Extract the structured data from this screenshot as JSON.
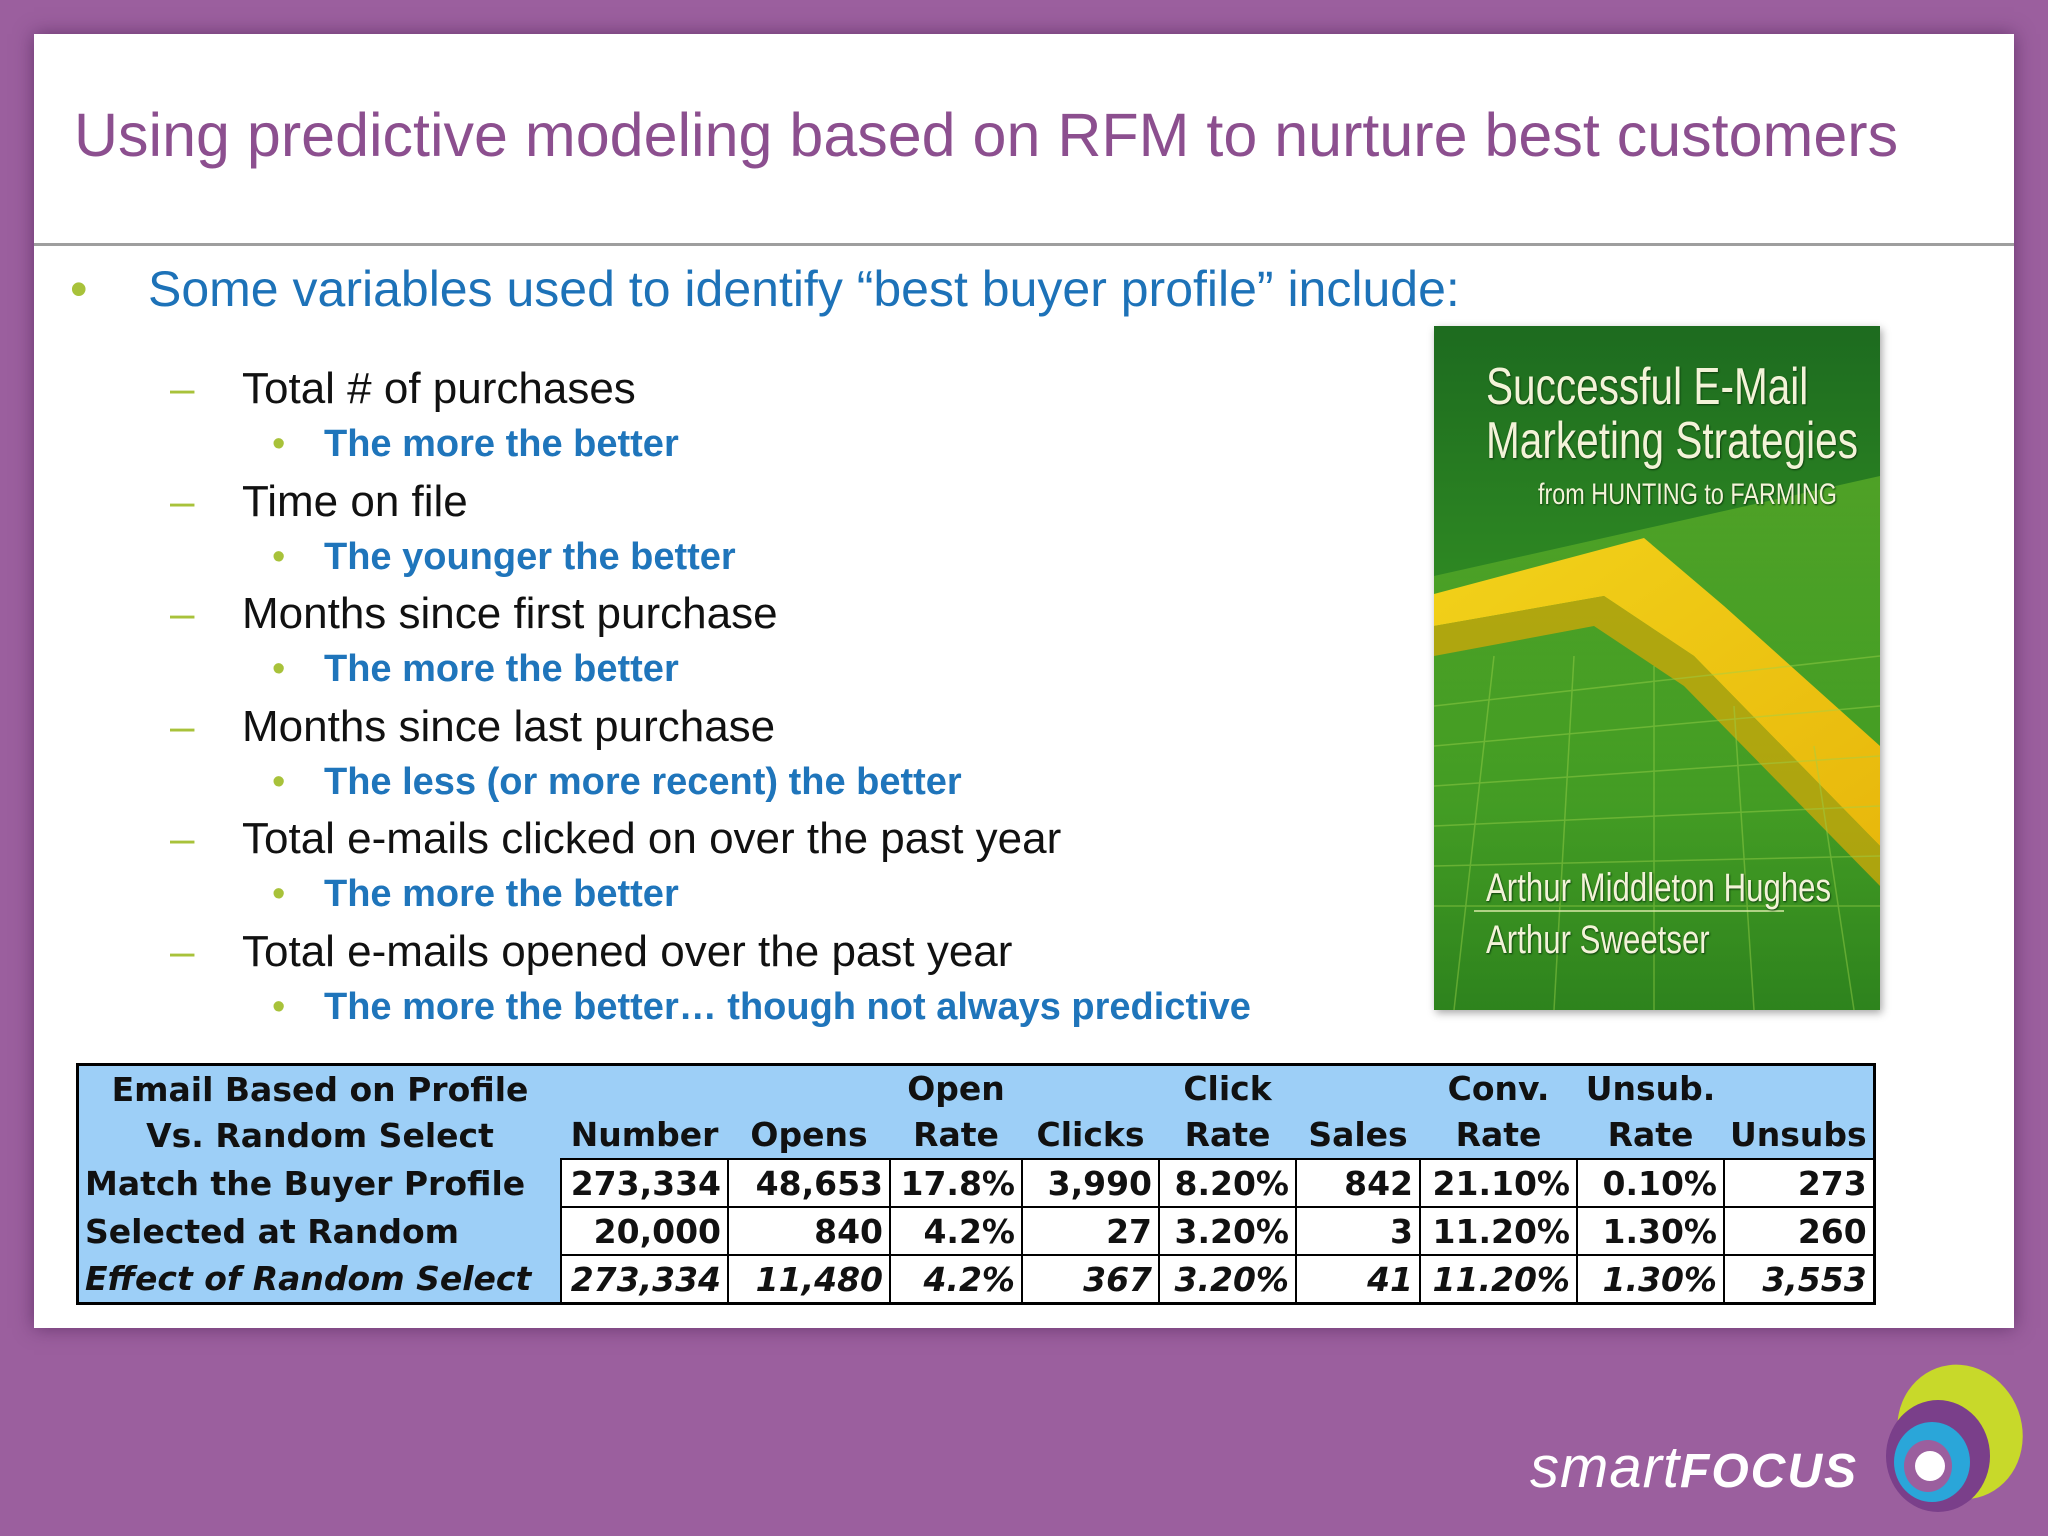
{
  "slide": {
    "title": "Using predictive modeling based on RFM to nurture best customers",
    "bullet_char": "•",
    "dash_char": "–",
    "main_bullet": "Some variables used to identify “best buyer profile” include:",
    "items": [
      {
        "label": "Total # of purchases",
        "note": "The more the better"
      },
      {
        "label": "Time on file",
        "note": "The younger the better"
      },
      {
        "label": "Months since first purchase",
        "note": "The more the better"
      },
      {
        "label": "Months since last purchase",
        "note": "The less (or more recent) the better"
      },
      {
        "label": "Total e-mails clicked on over the past year",
        "note": "The more the better"
      },
      {
        "label": "Total e-mails opened over the past year",
        "note": "The more the better… though not always predictive"
      }
    ]
  },
  "book": {
    "title_line1": "Successful E-Mail",
    "title_line2": "Marketing Strategies",
    "subtitle": "from HUNTING to FARMING",
    "author1": "Arthur Middleton Hughes",
    "author2": "Arthur Sweetser"
  },
  "table": {
    "headers": [
      [
        "Email Based on Profile",
        "Vs. Random Select"
      ],
      [
        "",
        "Number"
      ],
      [
        "",
        "Opens"
      ],
      [
        "Open",
        "Rate"
      ],
      [
        "",
        "Clicks"
      ],
      [
        "Click",
        "Rate"
      ],
      [
        "",
        "Sales"
      ],
      [
        "Conv.",
        "Rate"
      ],
      [
        "Unsub.",
        "Rate"
      ],
      [
        "",
        "Unsubs"
      ]
    ],
    "rows": [
      {
        "label": "Match the Buyer Profile",
        "values": [
          "273,334",
          "48,653",
          "17.8%",
          "3,990",
          "8.20%",
          "842",
          "21.10%",
          "0.10%",
          "273"
        ]
      },
      {
        "label": "Selected at Random",
        "values": [
          "20,000",
          "840",
          "4.2%",
          "27",
          "3.20%",
          "3",
          "11.20%",
          "1.30%",
          "260"
        ]
      },
      {
        "label": "Effect of Random Select",
        "values": [
          "273,334",
          "11,480",
          "4.2%",
          "367",
          "3.20%",
          "41",
          "11.20%",
          "1.30%",
          "3,553"
        ]
      }
    ]
  },
  "logo": {
    "text_light": "smart",
    "text_bold": "FOCUS",
    "colors": {
      "purple": "#7a3f8a",
      "lime": "#c8d92a",
      "cyan": "#2aa6d9",
      "white": "#ffffff"
    }
  }
}
